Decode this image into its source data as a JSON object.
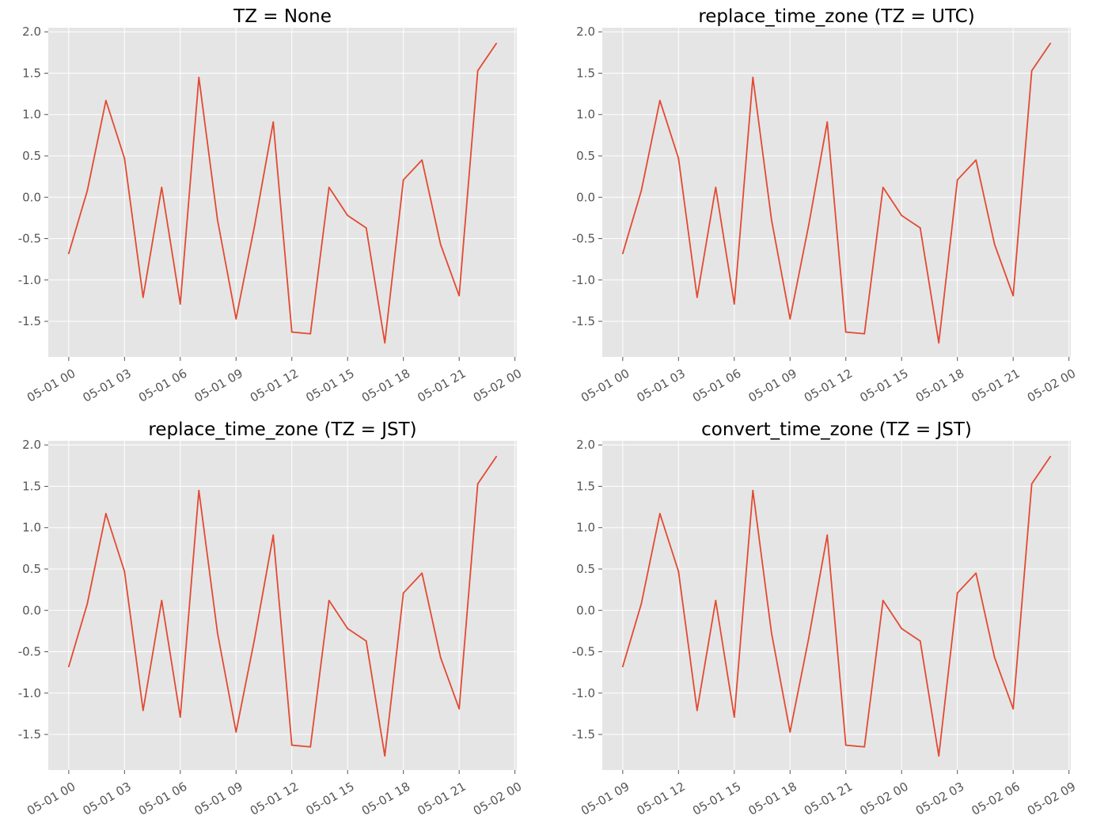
{
  "chart_data": [
    {
      "type": "line",
      "title": "TZ = None",
      "xlabel": "",
      "ylabel": "",
      "x_tick_labels": [
        "05-01 00",
        "05-01 03",
        "05-01 06",
        "05-01 09",
        "05-01 12",
        "05-01 15",
        "05-01 18",
        "05-01 21",
        "05-02 00"
      ],
      "y_tick_labels": [
        "2.0",
        "1.5",
        "1.0",
        "0.5",
        "0.0",
        "-0.5",
        "-1.0",
        "-1.5"
      ],
      "x_range_hours": [
        -1.1,
        24.1
      ],
      "ylim": [
        -1.93,
        2.05
      ],
      "grid": true,
      "series": [
        {
          "x_hours": [
            0,
            1,
            2,
            3,
            4,
            5,
            6,
            7,
            8,
            9,
            10,
            11,
            12,
            13,
            14,
            15,
            16,
            17,
            18,
            19,
            20,
            21,
            22,
            23
          ],
          "values": [
            -0.68,
            0.08,
            1.17,
            0.47,
            -1.21,
            0.12,
            -1.29,
            1.45,
            -0.27,
            -1.47,
            -0.34,
            0.91,
            -1.63,
            -1.65,
            0.12,
            -0.22,
            -0.37,
            -1.76,
            0.21,
            0.45,
            -0.57,
            -1.19,
            1.53,
            1.86
          ]
        }
      ]
    },
    {
      "type": "line",
      "title": "replace_time_zone (TZ = UTC)",
      "xlabel": "",
      "ylabel": "",
      "x_tick_labels": [
        "05-01 00",
        "05-01 03",
        "05-01 06",
        "05-01 09",
        "05-01 12",
        "05-01 15",
        "05-01 18",
        "05-01 21",
        "05-02 00"
      ],
      "y_tick_labels": [
        "2.0",
        "1.5",
        "1.0",
        "0.5",
        "0.0",
        "-0.5",
        "-1.0",
        "-1.5"
      ],
      "x_range_hours": [
        -1.1,
        24.1
      ],
      "ylim": [
        -1.93,
        2.05
      ],
      "grid": true,
      "series": [
        {
          "x_hours": [
            0,
            1,
            2,
            3,
            4,
            5,
            6,
            7,
            8,
            9,
            10,
            11,
            12,
            13,
            14,
            15,
            16,
            17,
            18,
            19,
            20,
            21,
            22,
            23
          ],
          "values": [
            -0.68,
            0.08,
            1.17,
            0.47,
            -1.21,
            0.12,
            -1.29,
            1.45,
            -0.27,
            -1.47,
            -0.34,
            0.91,
            -1.63,
            -1.65,
            0.12,
            -0.22,
            -0.37,
            -1.76,
            0.21,
            0.45,
            -0.57,
            -1.19,
            1.53,
            1.86
          ]
        }
      ]
    },
    {
      "type": "line",
      "title": "replace_time_zone (TZ = JST)",
      "xlabel": "",
      "ylabel": "",
      "x_tick_labels": [
        "05-01 00",
        "05-01 03",
        "05-01 06",
        "05-01 09",
        "05-01 12",
        "05-01 15",
        "05-01 18",
        "05-01 21",
        "05-02 00"
      ],
      "y_tick_labels": [
        "2.0",
        "1.5",
        "1.0",
        "0.5",
        "0.0",
        "-0.5",
        "-1.0",
        "-1.5"
      ],
      "x_range_hours": [
        -1.1,
        24.1
      ],
      "ylim": [
        -1.93,
        2.05
      ],
      "grid": true,
      "series": [
        {
          "x_hours": [
            0,
            1,
            2,
            3,
            4,
            5,
            6,
            7,
            8,
            9,
            10,
            11,
            12,
            13,
            14,
            15,
            16,
            17,
            18,
            19,
            20,
            21,
            22,
            23
          ],
          "values": [
            -0.68,
            0.08,
            1.17,
            0.47,
            -1.21,
            0.12,
            -1.29,
            1.45,
            -0.27,
            -1.47,
            -0.34,
            0.91,
            -1.63,
            -1.65,
            0.12,
            -0.22,
            -0.37,
            -1.76,
            0.21,
            0.45,
            -0.57,
            -1.19,
            1.53,
            1.86
          ]
        }
      ]
    },
    {
      "type": "line",
      "title": "convert_time_zone (TZ = JST)",
      "xlabel": "",
      "ylabel": "",
      "x_tick_labels": [
        "05-01 09",
        "05-01 12",
        "05-01 15",
        "05-01 18",
        "05-01 21",
        "05-02 00",
        "05-02 03",
        "05-02 06",
        "05-02 09"
      ],
      "y_tick_labels": [
        "2.0",
        "1.5",
        "1.0",
        "0.5",
        "0.0",
        "-0.5",
        "-1.0",
        "-1.5"
      ],
      "x_range_hours": [
        7.9,
        33.1
      ],
      "ylim": [
        -1.93,
        2.05
      ],
      "grid": true,
      "series": [
        {
          "x_hours": [
            9,
            10,
            11,
            12,
            13,
            14,
            15,
            16,
            17,
            18,
            19,
            20,
            21,
            22,
            23,
            24,
            25,
            26,
            27,
            28,
            29,
            30,
            31,
            32
          ],
          "values": [
            -0.68,
            0.08,
            1.17,
            0.47,
            -1.21,
            0.12,
            -1.29,
            1.45,
            -0.27,
            -1.47,
            -0.34,
            0.91,
            -1.63,
            -1.65,
            0.12,
            -0.22,
            -0.37,
            -1.76,
            0.21,
            0.45,
            -0.57,
            -1.19,
            1.53,
            1.86
          ]
        }
      ]
    }
  ],
  "style": {
    "plot_background": "#e5e5e5",
    "grid_color": "#ffffff",
    "line_color": "#e24a33",
    "tick_color": "#555555"
  }
}
